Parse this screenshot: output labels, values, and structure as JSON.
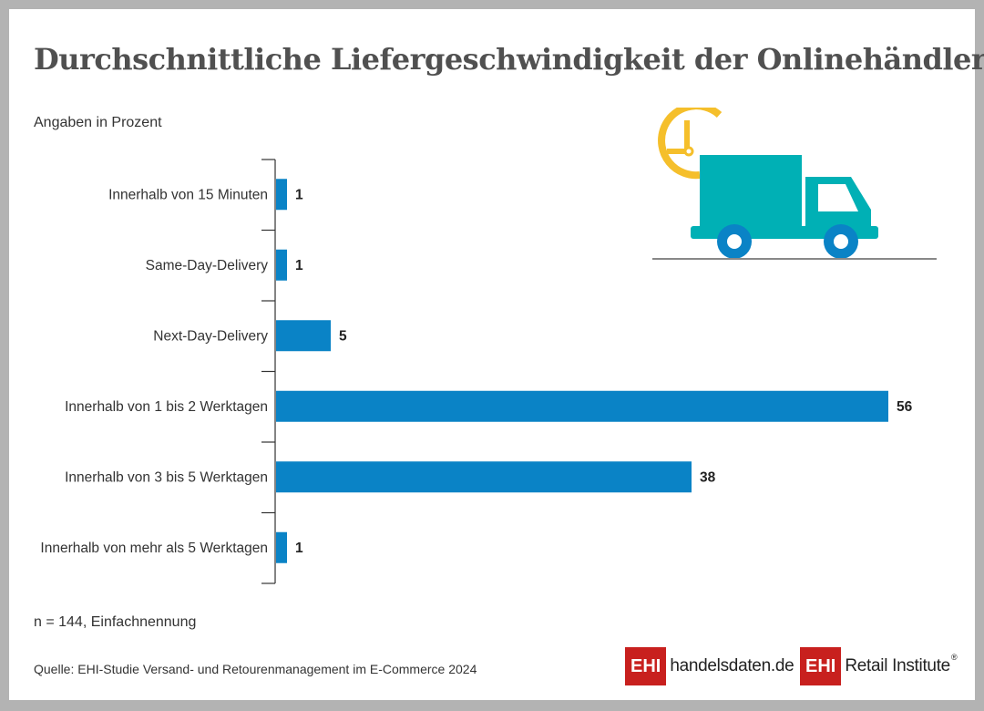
{
  "page": {
    "title": "Durchschnittliche Liefergeschwindigkeit der Onlinehändler",
    "unit_note": "Angaben in Prozent",
    "footnote": "n = 144, Einfachnennung",
    "source": "Quelle: EHI-Studie Versand- und Retourenmanagement im E-Commerce 2024"
  },
  "chart_data": {
    "type": "bar",
    "orientation": "horizontal",
    "title": "Durchschnittliche Liefergeschwindigkeit der Onlinehändler",
    "xlabel": "",
    "ylabel": "",
    "xlim": [
      0,
      56
    ],
    "grid": false,
    "categories": [
      "Innerhalb von 15 Minuten",
      "Same-Day-Delivery",
      "Next-Day-Delivery",
      "Innerhalb von 1 bis 2 Werktagen",
      "Innerhalb von 3 bis 5 Werktagen",
      "Innerhalb von mehr als 5 Werktagen"
    ],
    "values": [
      1,
      1,
      5,
      56,
      38,
      1
    ],
    "value_labels": [
      "1",
      "1",
      "5",
      "56",
      "38",
      "1"
    ],
    "bar_color": "#0a83c6"
  },
  "icons": {
    "illustration": "delivery-truck-clock-icon",
    "truck_color": "#00b0b5",
    "clock_color": "#f5bf2b",
    "wheel_color": "#0a83c6"
  },
  "logos": {
    "left": {
      "mark": "EHI",
      "text": "handelsdaten.de"
    },
    "right": {
      "mark": "EHI",
      "text": "Retail Institute",
      "reg": "®"
    },
    "brand_color": "#c8201e"
  }
}
